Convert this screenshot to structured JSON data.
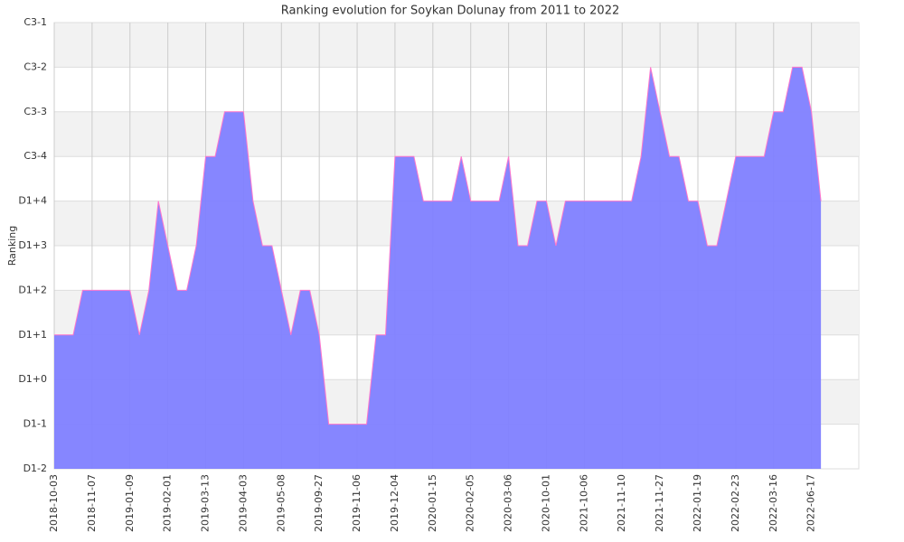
{
  "chart_data": {
    "type": "area",
    "title": "Ranking evolution for Soykan Dolunay from 2011 to 2022",
    "y_label": "Ranking",
    "categories": [
      "2018-10-03",
      null,
      null,
      null,
      "2018-11-07",
      null,
      null,
      null,
      "2019-01-09",
      null,
      null,
      null,
      "2019-02-01",
      null,
      null,
      null,
      "2019-03-13",
      null,
      null,
      null,
      "2019-04-03",
      null,
      null,
      null,
      "2019-05-08",
      null,
      null,
      null,
      "2019-09-27",
      null,
      null,
      null,
      "2019-11-06",
      null,
      null,
      null,
      "2019-12-04",
      null,
      null,
      null,
      "2020-01-15",
      null,
      null,
      null,
      "2020-02-05",
      null,
      null,
      null,
      "2020-03-06",
      null,
      null,
      null,
      "2020-10-01",
      null,
      null,
      null,
      "2021-10-06",
      null,
      null,
      null,
      "2021-11-10",
      null,
      null,
      null,
      "2021-11-27",
      null,
      null,
      null,
      "2022-01-19",
      null,
      null,
      null,
      "2022-02-23",
      null,
      null,
      null,
      "2022-03-16",
      null,
      null,
      null,
      "2022-06-17",
      null
    ],
    "values": [
      3,
      3,
      3,
      4,
      4,
      4,
      4,
      4,
      4,
      3,
      4,
      6,
      5,
      4,
      4,
      5,
      7,
      7,
      8,
      8,
      8,
      6,
      5,
      5,
      4,
      3,
      4,
      4,
      3,
      1,
      1,
      1,
      1,
      1,
      3,
      3,
      7,
      7,
      7,
      6,
      6,
      6,
      6,
      7,
      6,
      6,
      6,
      6,
      7,
      5,
      5,
      6,
      6,
      5,
      6,
      6,
      6,
      6,
      6,
      6,
      6,
      6,
      7,
      9,
      8,
      7,
      7,
      6,
      6,
      5,
      5,
      6,
      7,
      7,
      7,
      7,
      8,
      8,
      9,
      9,
      8,
      6
    ],
    "color": "#7f7fff",
    "line_color": "#ff77cc",
    "ylim": [
      0,
      10
    ],
    "yticks": [
      {
        "value": 0,
        "label": "D1-2"
      },
      {
        "value": 1,
        "label": "D1-1"
      },
      {
        "value": 2,
        "label": "D1+0"
      },
      {
        "value": 3,
        "label": "D1+1"
      },
      {
        "value": 4,
        "label": "D1+2"
      },
      {
        "value": 5,
        "label": "D1+3"
      },
      {
        "value": 6,
        "label": "D1+4"
      },
      {
        "value": 7,
        "label": "C3-4"
      },
      {
        "value": 8,
        "label": "C3-3"
      },
      {
        "value": 9,
        "label": "C3-2"
      },
      {
        "value": 10,
        "label": "C3-1"
      }
    ],
    "grid": true
  }
}
